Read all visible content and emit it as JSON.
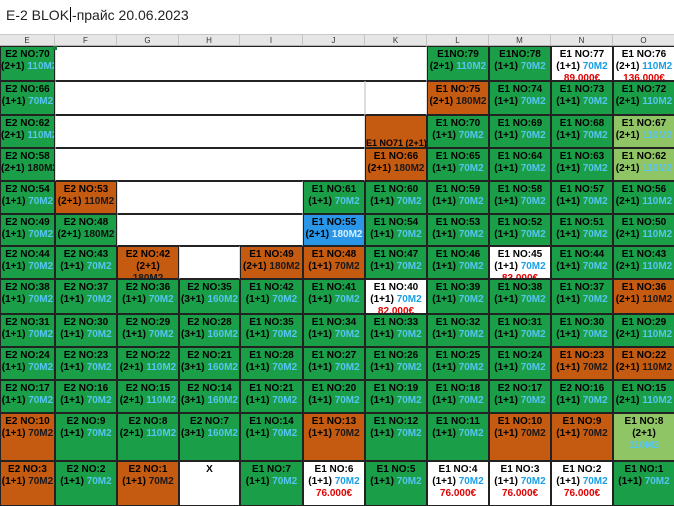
{
  "header": {
    "title_before_cursor": "E-2  BLOK",
    "title_after_cursor": "-прайс 20.06.2023"
  },
  "columns": [
    "E",
    "F",
    "G",
    "H",
    "I",
    "J",
    "K",
    "L",
    "M",
    "N",
    "O"
  ],
  "cells": [
    {
      "c": 0,
      "r": 0,
      "t": "E2 NO:70",
      "r2": "(2+1)",
      "s": "110M2",
      "p": "",
      "bg": "g"
    },
    {
      "c": 7,
      "r": 0,
      "t": "E1NO:79",
      "r2": "(2+1)",
      "s": "110M2",
      "p": "",
      "bg": "g"
    },
    {
      "c": 8,
      "r": 0,
      "t": "E1NO:78",
      "r2": "(1+1)",
      "s": "70M2",
      "p": "",
      "bg": "g"
    },
    {
      "c": 9,
      "r": 0,
      "t": "E1 NO:77",
      "r2": "(1+1)",
      "s": "70M2",
      "p": "89.000€",
      "bg": "w"
    },
    {
      "c": 10,
      "r": 0,
      "t": "E1 NO:76",
      "r2": "(2+1)",
      "s": "110M2",
      "p": "136.000€",
      "bg": "w"
    },
    {
      "c": 0,
      "r": 1,
      "t": "E2 NO:66",
      "r2": "(1+1)",
      "s": "70M2",
      "p": "",
      "bg": "g"
    },
    {
      "c": 7,
      "r": 1,
      "t": "E1 NO:75",
      "r2": "(2+1)",
      "s": "180M2",
      "p": "",
      "bg": "o"
    },
    {
      "c": 8,
      "r": 1,
      "t": "E1 NO:74",
      "r2": "(1+1)",
      "s": "70M2",
      "p": "",
      "bg": "g"
    },
    {
      "c": 9,
      "r": 1,
      "t": "E1 NO:73",
      "r2": "(1+1)",
      "s": "70M2",
      "p": "",
      "bg": "g"
    },
    {
      "c": 10,
      "r": 1,
      "t": "E1 NO:72",
      "r2": "(2+1)",
      "s": "110M2",
      "p": "",
      "bg": "g"
    },
    {
      "c": 0,
      "r": 2,
      "t": "E2 NO:62",
      "r2": "(2+1)",
      "s": "110M2",
      "p": "",
      "bg": "g"
    },
    {
      "c": 6,
      "r": 2,
      "t": "",
      "r2": "",
      "s": "",
      "p": "",
      "cap": "E1 NO71  (2+1)",
      "bg": "o"
    },
    {
      "c": 7,
      "r": 2,
      "t": "E1 NO:70",
      "r2": "(1+1)",
      "s": "70M2",
      "p": "",
      "bg": "g"
    },
    {
      "c": 8,
      "r": 2,
      "t": "E1 NO:69",
      "r2": "(1+1)",
      "s": "70M2",
      "p": "",
      "bg": "g"
    },
    {
      "c": 9,
      "r": 2,
      "t": "E1 NO:68",
      "r2": "(1+1)",
      "s": "70M2",
      "p": "",
      "bg": "g"
    },
    {
      "c": 10,
      "r": 2,
      "t": "E1 NO:67",
      "r2": "(2+1)",
      "s": "110M2",
      "p": "",
      "bg": "l"
    },
    {
      "c": 0,
      "r": 3,
      "t": "E2 NO:58",
      "r2": "(2+1)",
      "s": "180M2",
      "p": "",
      "bg": "g"
    },
    {
      "c": 6,
      "r": 3,
      "t": "E1 NO:66",
      "r2": "(2+1)",
      "s": "180M2",
      "p": "",
      "bg": "o"
    },
    {
      "c": 7,
      "r": 3,
      "t": "E1 NO:65",
      "r2": "(1+1)",
      "s": "70M2",
      "p": "",
      "bg": "g"
    },
    {
      "c": 8,
      "r": 3,
      "t": "E1 NO:64",
      "r2": "(1+1)",
      "s": "70M2",
      "p": "",
      "bg": "g"
    },
    {
      "c": 9,
      "r": 3,
      "t": "E1 NO:63",
      "r2": "(1+1)",
      "s": "70M2",
      "p": "",
      "bg": "g"
    },
    {
      "c": 10,
      "r": 3,
      "t": "E1 NO:62",
      "r2": "(2+1)",
      "s": "110M2",
      "p": "",
      "bg": "l"
    },
    {
      "c": 0,
      "r": 4,
      "t": "E2 NO:54",
      "r2": "(1+1)",
      "s": "70M2",
      "p": "",
      "bg": "g"
    },
    {
      "c": 1,
      "r": 4,
      "t": "E2 NO:53",
      "r2": "(2+1)",
      "s": "110M2",
      "p": "",
      "bg": "o"
    },
    {
      "c": 5,
      "r": 4,
      "t": "E1 NO:61",
      "r2": "(1+1)",
      "s": "70M2",
      "p": "",
      "bg": "g"
    },
    {
      "c": 6,
      "r": 4,
      "t": "E1 NO:60",
      "r2": "(1+1)",
      "s": "70M2",
      "p": "",
      "bg": "g"
    },
    {
      "c": 7,
      "r": 4,
      "t": "E1 NO:59",
      "r2": "(1+1)",
      "s": "70M2",
      "p": "",
      "bg": "g"
    },
    {
      "c": 8,
      "r": 4,
      "t": "E1 NO:58",
      "r2": "(1+1)",
      "s": "70M2",
      "p": "",
      "bg": "g"
    },
    {
      "c": 9,
      "r": 4,
      "t": "E1 NO:57",
      "r2": "(1+1)",
      "s": "70M2",
      "p": "",
      "bg": "g"
    },
    {
      "c": 10,
      "r": 4,
      "t": "E1 NO:56",
      "r2": "(2+1)",
      "s": "110M2",
      "p": "",
      "bg": "g"
    },
    {
      "c": 0,
      "r": 5,
      "t": "E2 NO:49",
      "r2": "(1+1)",
      "s": "70M2",
      "p": "",
      "bg": "g"
    },
    {
      "c": 1,
      "r": 5,
      "t": "E2 NO:48",
      "r2": "(2+1)",
      "s": "180M2",
      "p": "",
      "bg": "g"
    },
    {
      "c": 5,
      "r": 5,
      "t": "E1 NO:55",
      "r2": "(2+1)",
      "s": "180M2",
      "p": "",
      "bg": "b"
    },
    {
      "c": 6,
      "r": 5,
      "t": "E1 NO:54",
      "r2": "(1+1)",
      "s": "70M2",
      "p": "",
      "bg": "g"
    },
    {
      "c": 7,
      "r": 5,
      "t": "E1 NO:53",
      "r2": "(1+1)",
      "s": "70M2",
      "p": "",
      "bg": "g"
    },
    {
      "c": 8,
      "r": 5,
      "t": "E1 NO:52",
      "r2": "(1+1)",
      "s": "70M2",
      "p": "",
      "bg": "g"
    },
    {
      "c": 9,
      "r": 5,
      "t": "E1 NO:51",
      "r2": "(1+1)",
      "s": "70M2",
      "p": "",
      "bg": "g"
    },
    {
      "c": 10,
      "r": 5,
      "t": "E1 NO:50",
      "r2": "(2+1)",
      "s": "110M2",
      "p": "",
      "bg": "g"
    },
    {
      "c": 0,
      "r": 6,
      "t": "E2 NO:44",
      "r2": "(1+1)",
      "s": "70M2",
      "p": "",
      "bg": "g"
    },
    {
      "c": 1,
      "r": 6,
      "t": "E2 NO:43",
      "r2": "(1+1)",
      "s": "70M2",
      "p": "",
      "bg": "g"
    },
    {
      "c": 2,
      "r": 6,
      "t": "E2 NO:42",
      "r2": "(2+1)",
      "s": "180M2",
      "p": "",
      "bg": "o",
      "stack": true
    },
    {
      "c": 4,
      "r": 6,
      "t": "E1 NO:49",
      "r2": "(2+1)",
      "s": "180M2",
      "p": "",
      "bg": "o"
    },
    {
      "c": 5,
      "r": 6,
      "t": "E1 NO:48",
      "r2": "(1+1)",
      "s": "70M2",
      "p": "",
      "bg": "o"
    },
    {
      "c": 6,
      "r": 6,
      "t": "E1 NO:47",
      "r2": "(1+1)",
      "s": "70M2",
      "p": "",
      "bg": "g"
    },
    {
      "c": 7,
      "r": 6,
      "t": "E1 NO:46",
      "r2": "(1+1)",
      "s": "70M2",
      "p": "",
      "bg": "g"
    },
    {
      "c": 8,
      "r": 6,
      "t": "E1 NO:45",
      "r2": "(1+1)",
      "s": "70M2",
      "p": "83.000€",
      "bg": "w"
    },
    {
      "c": 9,
      "r": 6,
      "t": "E1 NO:44",
      "r2": "(1+1)",
      "s": "70M2",
      "p": "",
      "bg": "g"
    },
    {
      "c": 10,
      "r": 6,
      "t": "E1 NO:43",
      "r2": "(2+1)",
      "s": "110M2",
      "p": "",
      "bg": "g"
    },
    {
      "c": 0,
      "r": 7,
      "t": "E2 NO:38",
      "r2": "(1+1)",
      "s": "70M2",
      "p": "",
      "bg": "g"
    },
    {
      "c": 1,
      "r": 7,
      "t": "E2 NO:37",
      "r2": "(1+1)",
      "s": "70M2",
      "p": "",
      "bg": "g"
    },
    {
      "c": 2,
      "r": 7,
      "t": "E2 NO:36",
      "r2": "(1+1)",
      "s": "70M2",
      "p": "",
      "bg": "g"
    },
    {
      "c": 3,
      "r": 7,
      "t": "E2 NO:35",
      "r2": "(3+1)",
      "s": "160M2",
      "p": "",
      "bg": "g"
    },
    {
      "c": 4,
      "r": 7,
      "t": "E1 NO:42",
      "r2": "(1+1)",
      "s": "70M2",
      "p": "",
      "bg": "g"
    },
    {
      "c": 5,
      "r": 7,
      "t": "E1 NO:41",
      "r2": "(1+1)",
      "s": "70M2",
      "p": "",
      "bg": "g"
    },
    {
      "c": 6,
      "r": 7,
      "t": "E1 NO:40",
      "r2": "(1+1)",
      "s": "70M2",
      "p": "82.000€",
      "bg": "w"
    },
    {
      "c": 7,
      "r": 7,
      "t": "E1 NO:39",
      "r2": "(1+1)",
      "s": "70M2",
      "p": "",
      "bg": "g"
    },
    {
      "c": 8,
      "r": 7,
      "t": "E1 NO:38",
      "r2": "(1+1)",
      "s": "70M2",
      "p": "",
      "bg": "g"
    },
    {
      "c": 9,
      "r": 7,
      "t": "E1 NO:37",
      "r2": "(1+1)",
      "s": "70M2",
      "p": "",
      "bg": "g"
    },
    {
      "c": 10,
      "r": 7,
      "t": "E1 NO:36",
      "r2": "(2+1)",
      "s": "110M2",
      "p": "",
      "bg": "o"
    },
    {
      "c": 0,
      "r": 8,
      "t": "E2 NO:31",
      "r2": "(1+1)",
      "s": "70M2",
      "p": "",
      "bg": "g"
    },
    {
      "c": 1,
      "r": 8,
      "t": "E2 NO:30",
      "r2": "(1+1)",
      "s": "70M2",
      "p": "",
      "bg": "g"
    },
    {
      "c": 2,
      "r": 8,
      "t": "E2 NO:29",
      "r2": "(1+1)",
      "s": "70M2",
      "p": "",
      "bg": "g"
    },
    {
      "c": 3,
      "r": 8,
      "t": "E2 NO:28",
      "r2": "(3+1)",
      "s": "160M2",
      "p": "",
      "bg": "g"
    },
    {
      "c": 4,
      "r": 8,
      "t": "E1 NO:35",
      "r2": "(1+1)",
      "s": "70M2",
      "p": "",
      "bg": "g"
    },
    {
      "c": 5,
      "r": 8,
      "t": "E1 NO:34",
      "r2": "(1+1)",
      "s": "70M2",
      "p": "",
      "bg": "g"
    },
    {
      "c": 6,
      "r": 8,
      "t": "E1 NO:33",
      "r2": "(1+1)",
      "s": "70M2",
      "p": "",
      "bg": "g"
    },
    {
      "c": 7,
      "r": 8,
      "t": "E1 NO:32",
      "r2": "(1+1)",
      "s": "70M2",
      "p": "",
      "bg": "g"
    },
    {
      "c": 8,
      "r": 8,
      "t": "E1 NO:31",
      "r2": "(1+1)",
      "s": "70M2",
      "p": "",
      "bg": "g"
    },
    {
      "c": 9,
      "r": 8,
      "t": "E1 NO:30",
      "r2": "(1+1)",
      "s": "70M2",
      "p": "",
      "bg": "g"
    },
    {
      "c": 10,
      "r": 8,
      "t": "E1 NO:29",
      "r2": "(2+1)",
      "s": "110M2",
      "p": "",
      "bg": "g"
    },
    {
      "c": 0,
      "r": 9,
      "t": "E2 NO:24",
      "r2": "(1+1)",
      "s": "70M2",
      "p": "",
      "bg": "g"
    },
    {
      "c": 1,
      "r": 9,
      "t": "E2 NO:23",
      "r2": "(1+1)",
      "s": "70M2",
      "p": "",
      "bg": "g"
    },
    {
      "c": 2,
      "r": 9,
      "t": "E2 NO:22",
      "r2": "(2+1)",
      "s": "110M2",
      "p": "",
      "bg": "g"
    },
    {
      "c": 3,
      "r": 9,
      "t": "E2 NO:21",
      "r2": "(3+1)",
      "s": "160M2",
      "p": "",
      "bg": "g"
    },
    {
      "c": 4,
      "r": 9,
      "t": "E1 NO:28",
      "r2": "(1+1)",
      "s": "70M2",
      "p": "",
      "bg": "g"
    },
    {
      "c": 5,
      "r": 9,
      "t": "E1 NO:27",
      "r2": "(1+1)",
      "s": "70M2",
      "p": "",
      "bg": "g"
    },
    {
      "c": 6,
      "r": 9,
      "t": "E1 NO:26",
      "r2": "(1+1)",
      "s": "70M2",
      "p": "",
      "bg": "g"
    },
    {
      "c": 7,
      "r": 9,
      "t": "E1 NO:25",
      "r2": "(1+1)",
      "s": "70M2",
      "p": "",
      "bg": "g"
    },
    {
      "c": 8,
      "r": 9,
      "t": "E1 NO:24",
      "r2": "(1+1)",
      "s": "70M2",
      "p": "",
      "bg": "g"
    },
    {
      "c": 9,
      "r": 9,
      "t": "E1 NO:23",
      "r2": "(1+1)",
      "s": "70M2",
      "p": "",
      "bg": "o"
    },
    {
      "c": 10,
      "r": 9,
      "t": "E1 NO:22",
      "r2": "(2+1)",
      "s": "110M2",
      "p": "",
      "bg": "o"
    },
    {
      "c": 0,
      "r": 10,
      "t": "E2 NO:17",
      "r2": "(1+1)",
      "s": "70M2",
      "p": "",
      "bg": "g"
    },
    {
      "c": 1,
      "r": 10,
      "t": "E2 NO:16",
      "r2": "(1+1)",
      "s": "70M2",
      "p": "",
      "bg": "g"
    },
    {
      "c": 2,
      "r": 10,
      "t": "E2 NO:15",
      "r2": "(2+1)",
      "s": "110M2",
      "p": "",
      "bg": "g"
    },
    {
      "c": 3,
      "r": 10,
      "t": "E2 NO:14",
      "r2": "(3+1)",
      "s": "160M2",
      "p": "",
      "bg": "g"
    },
    {
      "c": 4,
      "r": 10,
      "t": "E1 NO:21",
      "r2": "(1+1)",
      "s": "70M2",
      "p": "",
      "bg": "g"
    },
    {
      "c": 5,
      "r": 10,
      "t": "E1 NO:20",
      "r2": "(1+1)",
      "s": "70M2",
      "p": "",
      "bg": "g"
    },
    {
      "c": 6,
      "r": 10,
      "t": "E1 NO:19",
      "r2": "(1+1)",
      "s": "70M2",
      "p": "",
      "bg": "g"
    },
    {
      "c": 7,
      "r": 10,
      "t": "E1 NO:18",
      "r2": "(1+1)",
      "s": "70M2",
      "p": "",
      "bg": "g"
    },
    {
      "c": 8,
      "r": 10,
      "t": "E2 NO:17",
      "r2": "(1+1)",
      "s": "70M2",
      "p": "",
      "bg": "g"
    },
    {
      "c": 9,
      "r": 10,
      "t": "E2 NO:16",
      "r2": "(1+1)",
      "s": "70M2",
      "p": "",
      "bg": "g"
    },
    {
      "c": 10,
      "r": 10,
      "t": "E1 NO:15",
      "r2": "(2+1)",
      "s": "110M2",
      "p": "",
      "bg": "g"
    },
    {
      "c": 0,
      "r": 11,
      "t": "E2 NO:10",
      "r2": "(1+1)",
      "s": "70M2",
      "p": "",
      "bg": "o"
    },
    {
      "c": 1,
      "r": 11,
      "t": "E2 NO:9",
      "r2": "(1+1)",
      "s": "70M2",
      "p": "",
      "bg": "g"
    },
    {
      "c": 2,
      "r": 11,
      "t": "E2 NO:8",
      "r2": "(2+1)",
      "s": "110M2",
      "p": "",
      "bg": "g"
    },
    {
      "c": 3,
      "r": 11,
      "t": "E2 NO:7",
      "r2": "(3+1)",
      "s": "160M2",
      "p": "",
      "bg": "g"
    },
    {
      "c": 4,
      "r": 11,
      "t": "E1 NO:14",
      "r2": "(1+1)",
      "s": "70M2",
      "p": "",
      "bg": "g"
    },
    {
      "c": 5,
      "r": 11,
      "t": "E1 NO:13",
      "r2": "(1+1)",
      "s": "70M2",
      "p": "",
      "bg": "o"
    },
    {
      "c": 6,
      "r": 11,
      "t": "E1 NO:12",
      "r2": "(1+1)",
      "s": "70M2",
      "p": "",
      "bg": "g"
    },
    {
      "c": 7,
      "r": 11,
      "t": "E1 NO:11",
      "r2": "(1+1)",
      "s": "70M2",
      "p": "",
      "bg": "g"
    },
    {
      "c": 8,
      "r": 11,
      "t": "E1 NO:10",
      "r2": "(1+1)",
      "s": "70M2",
      "p": "",
      "bg": "o"
    },
    {
      "c": 9,
      "r": 11,
      "t": "E1 NO:9",
      "r2": "(1+1)",
      "s": "70M2",
      "p": "",
      "bg": "o"
    },
    {
      "c": 10,
      "r": 11,
      "t": "E1 NO:8",
      "r2": "(2+1)",
      "s": "110M2",
      "p": "",
      "bg": "l",
      "stack": true
    },
    {
      "c": 0,
      "r": 12,
      "t": "E2 NO:3",
      "r2": "(1+1)",
      "s": "70M2",
      "p": "",
      "bg": "o"
    },
    {
      "c": 1,
      "r": 12,
      "t": "E2 NO:2",
      "r2": "(1+1)",
      "s": "70M2",
      "p": "",
      "bg": "g"
    },
    {
      "c": 2,
      "r": 12,
      "t": "E2 NO:1",
      "r2": "(1+1)",
      "s": "70M2",
      "p": "",
      "bg": "o"
    },
    {
      "c": 3,
      "r": 12,
      "t": "X",
      "r2": "",
      "s": "",
      "p": "",
      "bg": "w"
    },
    {
      "c": 4,
      "r": 12,
      "t": "E1 NO:7",
      "r2": "(1+1)",
      "s": "70M2",
      "p": "",
      "bg": "g"
    },
    {
      "c": 5,
      "r": 12,
      "t": "E1 NO:6",
      "r2": "(1+1)",
      "s": "70M2",
      "p": "76.000€",
      "bg": "w"
    },
    {
      "c": 6,
      "r": 12,
      "t": "E1 NO:5",
      "r2": "(1+1)",
      "s": "70M2",
      "p": "",
      "bg": "g"
    },
    {
      "c": 7,
      "r": 12,
      "t": "E1 NO:4",
      "r2": "(1+1)",
      "s": "70M2",
      "p": "76.000€",
      "bg": "w"
    },
    {
      "c": 8,
      "r": 12,
      "t": "E1 NO:3",
      "r2": "(1+1)",
      "s": "70M2",
      "p": "76.000€",
      "bg": "w"
    },
    {
      "c": 9,
      "r": 12,
      "t": "E1 NO:2",
      "r2": "(1+1)",
      "s": "70M2",
      "p": "76.000€",
      "bg": "w"
    },
    {
      "c": 10,
      "r": 12,
      "t": "E1 NO:1",
      "r2": "(1+1)",
      "s": "70M2",
      "p": "",
      "bg": "g"
    }
  ],
  "blanks": [
    {
      "c": 1,
      "r": 0,
      "span": 6,
      "bg": "w"
    },
    {
      "c": 1,
      "r": 1,
      "span": 5,
      "bg": "w"
    },
    {
      "c": 6,
      "r": 1,
      "span": 1,
      "bg": "w"
    },
    {
      "c": 1,
      "r": 2,
      "span": 5,
      "bg": "w"
    },
    {
      "c": 1,
      "r": 3,
      "span": 5,
      "bg": "w"
    },
    {
      "c": 2,
      "r": 4,
      "span": 3,
      "bg": "w"
    },
    {
      "c": 2,
      "r": 5,
      "span": 3,
      "bg": "w"
    },
    {
      "c": 3,
      "r": 6,
      "span": 1,
      "bg": "w"
    }
  ]
}
